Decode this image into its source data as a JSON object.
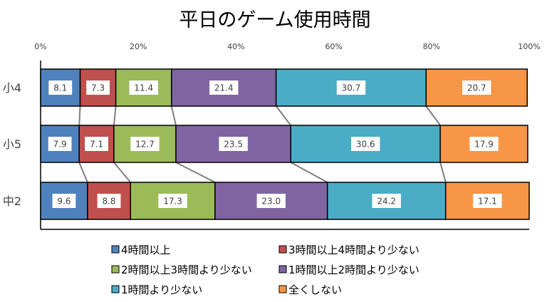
{
  "chart_data": {
    "type": "bar",
    "orientation": "horizontal",
    "stacked": "percent",
    "title": "平日のゲーム使用時間",
    "categories": [
      "小4",
      "小5",
      "中2"
    ],
    "xlim": [
      0,
      100
    ],
    "x_ticks": [
      "0%",
      "20%",
      "40%",
      "60%",
      "80%",
      "100%"
    ],
    "tick_position": "top",
    "legend_position": "bottom",
    "series": [
      {
        "name": "4時間以上",
        "color": "#4f81bd",
        "values": [
          8.1,
          7.9,
          9.6
        ],
        "labels": [
          "8.1",
          "7.9",
          "9.6"
        ]
      },
      {
        "name": "3時間以上4時間より少ない",
        "color": "#c0504d",
        "values": [
          7.3,
          7.1,
          8.8
        ],
        "labels": [
          "7.3",
          "7.1",
          "8.8"
        ]
      },
      {
        "name": "2時間以上3時間より少ない",
        "color": "#9bbb59",
        "values": [
          11.4,
          12.7,
          17.3
        ],
        "labels": [
          "11.4",
          "12.7",
          "17.3"
        ]
      },
      {
        "name": "1時間以上2時間より少ない",
        "color": "#8064a2",
        "values": [
          21.4,
          23.5,
          23.0
        ],
        "labels": [
          "21.4",
          "23.5",
          "23.0"
        ]
      },
      {
        "name": "1時間より少ない",
        "color": "#4bacc6",
        "values": [
          30.7,
          30.6,
          24.2
        ],
        "labels": [
          "30.7",
          "30.6",
          "24.2"
        ]
      },
      {
        "name": "全くしない",
        "color": "#f79646",
        "values": [
          20.7,
          17.9,
          17.1
        ],
        "labels": [
          "20.7",
          "17.9",
          "17.1"
        ]
      }
    ],
    "series_lines": true,
    "gridlines": false
  }
}
